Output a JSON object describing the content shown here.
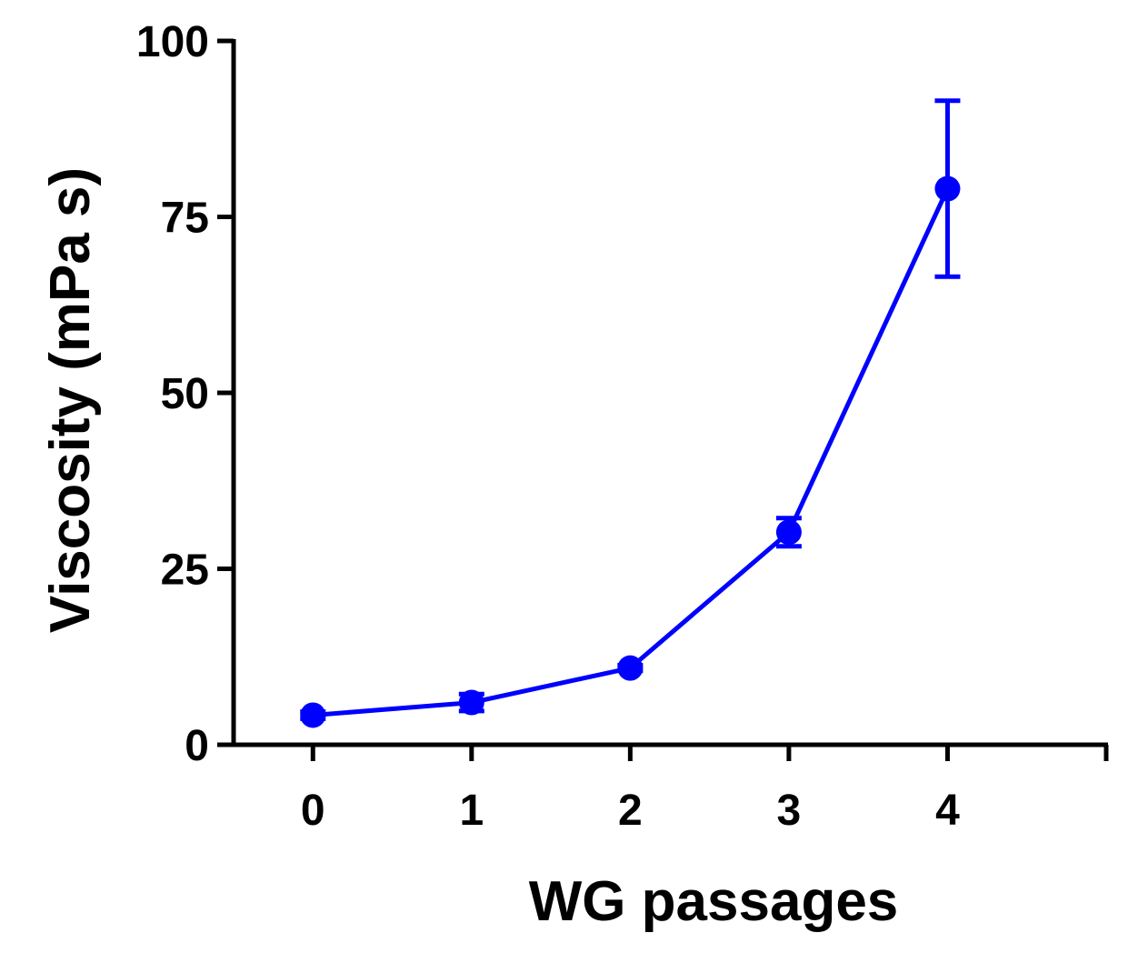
{
  "chart_data": {
    "type": "line",
    "xlabel": "WG passages",
    "ylabel": "Viscosity (mPa s)",
    "x": [
      0,
      1,
      2,
      3,
      4
    ],
    "xticks": [
      "0",
      "1",
      "2",
      "3",
      "4"
    ],
    "xlim": [
      -0.5,
      5
    ],
    "ylim": [
      0,
      100
    ],
    "yticks": [
      "0",
      "25",
      "50",
      "75",
      "100"
    ],
    "grid": false,
    "series": [
      {
        "values": [
          4.2,
          6.0,
          10.9,
          30.2,
          79.0
        ],
        "error": [
          0.5,
          1.2,
          0.4,
          2.0,
          12.5
        ],
        "color": "#0000ff"
      }
    ]
  }
}
